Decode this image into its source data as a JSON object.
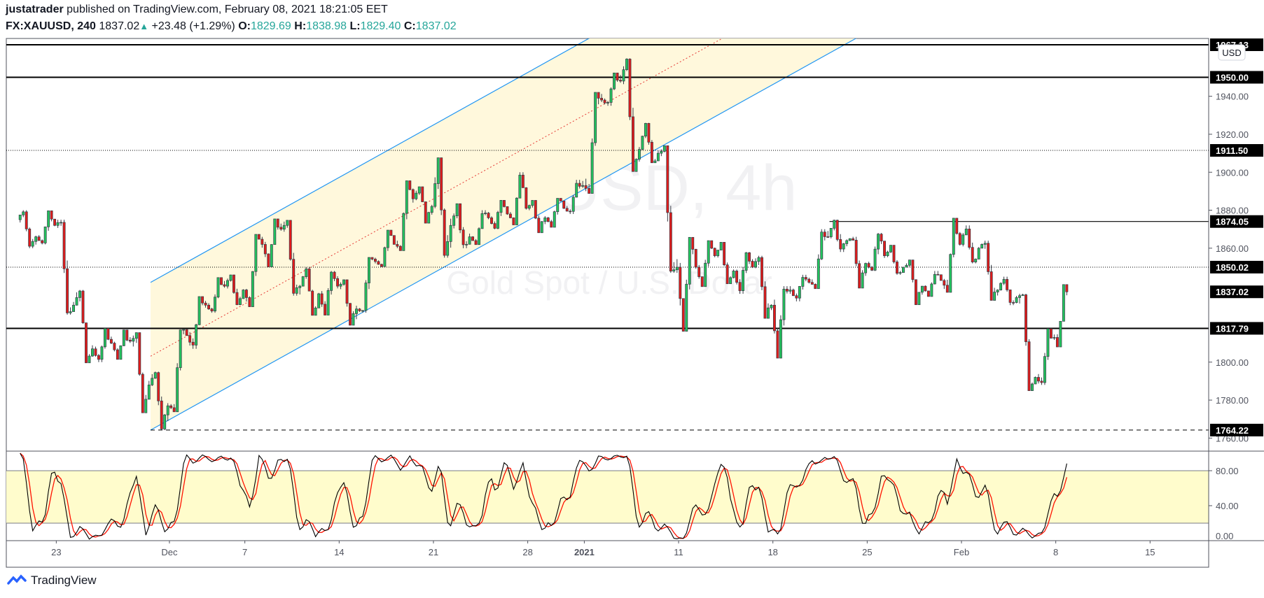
{
  "header": {
    "author": "justatrader",
    "published": "published on TradingView.com, February 08, 2021 18:21:05 EET",
    "symbol": "FX:XAUUSD, 240",
    "last": "1837.02",
    "change_icon": "triangle-up-icon",
    "change": "+23.48 (+1.29%)",
    "o_label": "O:",
    "o": "1829.69",
    "h_label": "H:",
    "h": "1838.98",
    "l_label": "L:",
    "l": "1829.40",
    "c_label": "C:",
    "c": "1837.02"
  },
  "watermark": {
    "symbol": "XAUUSD, 4h",
    "description": "Gold Spot / U.S. Dollar"
  },
  "currency_badge": "USD",
  "logo": "TradingView",
  "colors": {
    "up": "#22c55e",
    "down": "#e31b1b",
    "wick": "#363a45",
    "channel": "#2196f3",
    "channel_fill": "#fff8dc",
    "stoch_k": "#000000",
    "stoch_d": "#ff1100",
    "stoch_band": "#fffccc"
  },
  "chart_data": [
    {
      "type": "candlestick",
      "interval": "4h",
      "ylim": [
        1755,
        1972
      ],
      "yticks": [
        "1940.00",
        "1920.00",
        "1900.00",
        "1880.00",
        "1860.00",
        "1800.00",
        "1780.00",
        "1760.00"
      ],
      "xticks": [
        {
          "date": "2020-11-23",
          "label": "23"
        },
        {
          "date": "2020-12-01",
          "label": "Dec"
        },
        {
          "date": "2020-12-07",
          "label": "7"
        },
        {
          "date": "2020-12-14",
          "label": "14"
        },
        {
          "date": "2020-12-21",
          "label": "21"
        },
        {
          "date": "2020-12-28",
          "label": "28"
        },
        {
          "date": "2021-01-04",
          "label": "2021"
        },
        {
          "date": "2021-01-11",
          "label": "11"
        },
        {
          "date": "2021-01-18",
          "label": "18"
        },
        {
          "date": "2021-01-25",
          "label": "25"
        },
        {
          "date": "2021-02-01",
          "label": "Feb"
        },
        {
          "date": "2021-02-08",
          "label": "8"
        },
        {
          "date": "2021-02-15",
          "label": "15"
        }
      ],
      "daily_ohlc": [
        [
          "2020-11-19",
          1875,
          1880,
          1860,
          1866
        ],
        [
          "2020-11-20",
          1866,
          1878,
          1862,
          1872
        ],
        [
          "2020-11-23",
          1872,
          1875,
          1825,
          1830
        ],
        [
          "2020-11-24",
          1830,
          1838,
          1800,
          1807
        ],
        [
          "2020-11-25",
          1807,
          1816,
          1800,
          1810
        ],
        [
          "2020-11-26",
          1810,
          1815,
          1803,
          1811
        ],
        [
          "2020-11-27",
          1811,
          1814,
          1775,
          1788
        ],
        [
          "2020-11-30",
          1788,
          1795,
          1764.22,
          1777
        ],
        [
          "2020-12-01",
          1777,
          1817,
          1775,
          1814
        ],
        [
          "2020-12-02",
          1814,
          1833,
          1807,
          1830
        ],
        [
          "2020-12-03",
          1830,
          1844,
          1826,
          1840
        ],
        [
          "2020-12-04",
          1840,
          1846,
          1830,
          1838
        ],
        [
          "2020-12-07",
          1838,
          1866,
          1830,
          1862
        ],
        [
          "2020-12-08",
          1862,
          1875,
          1852,
          1870
        ],
        [
          "2020-12-09",
          1870,
          1874,
          1835,
          1840
        ],
        [
          "2020-12-10",
          1840,
          1850,
          1825,
          1836
        ],
        [
          "2020-12-11",
          1836,
          1848,
          1825,
          1840
        ],
        [
          "2020-12-14",
          1840,
          1842,
          1820,
          1828
        ],
        [
          "2020-12-15",
          1828,
          1855,
          1826,
          1853
        ],
        [
          "2020-12-16",
          1853,
          1868,
          1850,
          1862
        ],
        [
          "2020-12-17",
          1862,
          1895,
          1860,
          1886
        ],
        [
          "2020-12-18",
          1886,
          1892,
          1875,
          1882
        ],
        [
          "2020-12-21",
          1882,
          1906,
          1855,
          1872
        ],
        [
          "2020-12-22",
          1872,
          1882,
          1860,
          1866
        ],
        [
          "2020-12-23",
          1866,
          1880,
          1862,
          1876
        ],
        [
          "2020-12-24",
          1876,
          1884,
          1870,
          1878
        ],
        [
          "2020-12-25",
          1878,
          1900,
          1874,
          1881
        ],
        [
          "2020-12-28",
          1881,
          1884,
          1870,
          1876
        ],
        [
          "2020-12-29",
          1876,
          1885,
          1872,
          1881
        ],
        [
          "2020-12-30",
          1881,
          1896,
          1878,
          1893
        ],
        [
          "2021-01-04",
          1893,
          1942,
          1890,
          1938
        ],
        [
          "2021-01-05",
          1938,
          1952,
          1935,
          1948
        ],
        [
          "2021-01-06",
          1948,
          1960,
          1902,
          1912
        ],
        [
          "2021-01-07",
          1912,
          1926,
          1905,
          1910
        ],
        [
          "2021-01-08",
          1910,
          1912,
          1847,
          1850
        ],
        [
          "2021-01-11",
          1850,
          1865,
          1817,
          1850
        ],
        [
          "2021-01-12",
          1850,
          1863,
          1840,
          1856
        ],
        [
          "2021-01-13",
          1856,
          1862,
          1842,
          1848
        ],
        [
          "2021-01-14",
          1848,
          1858,
          1836,
          1850
        ],
        [
          "2021-01-15",
          1850,
          1856,
          1825,
          1830
        ],
        [
          "2021-01-18",
          1830,
          1840,
          1803,
          1838
        ],
        [
          "2021-01-19",
          1838,
          1846,
          1832,
          1842
        ],
        [
          "2021-01-20",
          1842,
          1870,
          1840,
          1866
        ],
        [
          "2021-01-21",
          1866,
          1875,
          1858,
          1864
        ],
        [
          "2021-01-22",
          1864,
          1866,
          1840,
          1852
        ],
        [
          "2021-01-25",
          1852,
          1868,
          1848,
          1856
        ],
        [
          "2021-01-26",
          1856,
          1860,
          1846,
          1850
        ],
        [
          "2021-01-27",
          1850,
          1852,
          1832,
          1840
        ],
        [
          "2021-01-28",
          1840,
          1848,
          1835,
          1843
        ],
        [
          "2021-01-29",
          1843,
          1875,
          1838,
          1862
        ],
        [
          "2021-02-01",
          1862,
          1872,
          1852,
          1860
        ],
        [
          "2021-02-02",
          1860,
          1864,
          1834,
          1838
        ],
        [
          "2021-02-03",
          1838,
          1845,
          1830,
          1834
        ],
        [
          "2021-02-04",
          1834,
          1836,
          1785,
          1792
        ],
        [
          "2021-02-05",
          1792,
          1816,
          1788,
          1813
        ],
        [
          "2021-02-08",
          1813,
          1838.98,
          1808,
          1837.02
        ]
      ],
      "horizontal_lines": [
        {
          "price": 1967.13,
          "label": "1967.13",
          "style": "solid"
        },
        {
          "price": 1950.0,
          "label": "1950.00",
          "style": "solid"
        },
        {
          "price": 1911.5,
          "label": "1911.50",
          "style": "dotted"
        },
        {
          "price": 1874.05,
          "label": "1874.05",
          "style": "solid",
          "from": "2021-01-21"
        },
        {
          "price": 1850.02,
          "label": "1850.02",
          "style": "dotted"
        },
        {
          "price": 1817.79,
          "label": "1817.79",
          "style": "solid"
        },
        {
          "price": 1764.22,
          "label": "1764.22",
          "style": "dashed",
          "from": "2020-11-30"
        }
      ],
      "last_price_label": "1837.02",
      "channel": {
        "start": "2020-11-30",
        "upper": [
          [
            "2020-11-30",
            1842
          ],
          [
            "2021-01-07",
            1985.7
          ]
        ],
        "lower": [
          [
            "2020-11-30",
            1764.22
          ],
          [
            "2021-01-07",
            1907.6
          ]
        ]
      }
    },
    {
      "type": "line",
      "indicator": "stochastic",
      "ylim": [
        0,
        100
      ],
      "band": [
        20,
        80
      ],
      "yticks": [
        "80.00",
        "40.00",
        "0.00"
      ]
    }
  ]
}
